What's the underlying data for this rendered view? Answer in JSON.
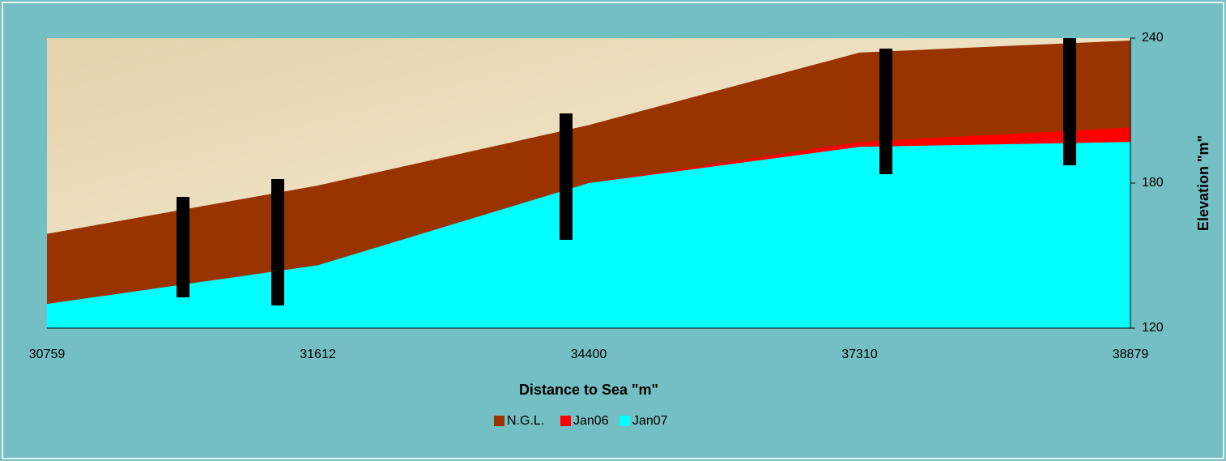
{
  "chart_data": {
    "type": "area",
    "x_label": "Distance to Sea \"m\"",
    "y_label": "Elevation \"m\"",
    "categories": [
      "30759",
      "31612",
      "34400",
      "37310",
      "38879"
    ],
    "series": [
      {
        "name": "N.G.L.",
        "color": "#993300",
        "values": [
          159,
          179,
          204,
          234,
          239
        ]
      },
      {
        "name": "Jan06",
        "color": "#ff0000",
        "values": [
          130,
          146,
          180,
          197,
          203
        ]
      },
      {
        "name": "Jan07",
        "color": "#00ffff",
        "values": [
          130,
          146,
          180,
          195,
          197
        ]
      }
    ],
    "ylim": [
      120,
      240
    ],
    "yticks": [
      120,
      180,
      240
    ],
    "y_axis_side": "right",
    "legend": "bottom"
  }
}
